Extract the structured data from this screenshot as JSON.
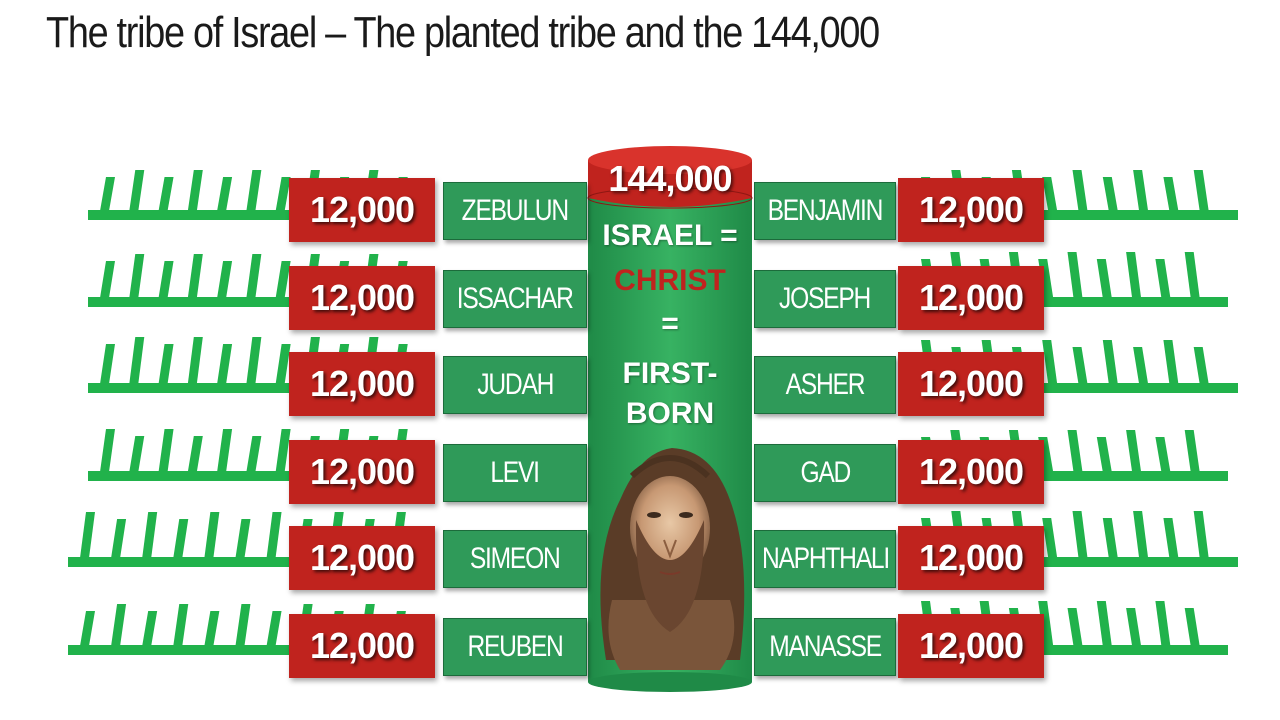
{
  "title": "The tribe of Israel – The planted tribe and the 144,000",
  "center": {
    "total": "144,000",
    "line1": "ISRAEL =",
    "line2": "CHRIST",
    "line3": "=",
    "line4": "FIRST-",
    "line5": "BORN"
  },
  "left_rows": [
    {
      "count": "12,000",
      "tribe": "ZEBULUN"
    },
    {
      "count": "12,000",
      "tribe": "ISSACHAR"
    },
    {
      "count": "12,000",
      "tribe": "JUDAH"
    },
    {
      "count": "12,000",
      "tribe": "LEVI"
    },
    {
      "count": "12,000",
      "tribe": "SIMEON"
    },
    {
      "count": "12,000",
      "tribe": "REUBEN"
    }
  ],
  "right_rows": [
    {
      "count": "12,000",
      "tribe": "BENJAMIN"
    },
    {
      "count": "12,000",
      "tribe": "JOSEPH"
    },
    {
      "count": "12,000",
      "tribe": "ASHER"
    },
    {
      "count": "12,000",
      "tribe": "GAD"
    },
    {
      "count": "12,000",
      "tribe": "NAPHTHALI"
    },
    {
      "count": "12,000",
      "tribe": "MANASSE"
    }
  ],
  "colors": {
    "red": "#c0231e",
    "green": "#2f9a59",
    "plant_green": "#21b24b"
  }
}
